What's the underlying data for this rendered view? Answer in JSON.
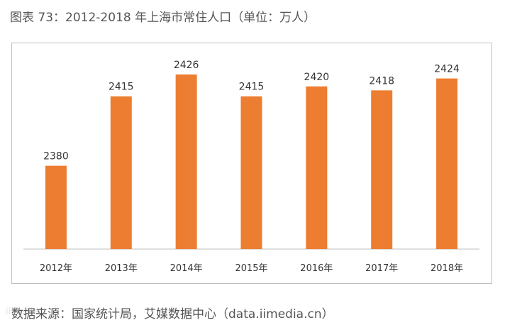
{
  "title": "图表 73：2012-2018 年上海市常住人口（单位：万人）",
  "source": "数据来源：国家统计局，艾媒数据中心（data.iimedia.cn）",
  "watermark": "iiMedia",
  "colors": {
    "bar": "#ED7D31",
    "axis": "#bfbfbf",
    "text": "#333333"
  },
  "chart_data": {
    "type": "bar",
    "title": "2012-2018 年上海市常住人口（单位：万人）",
    "categories": [
      "2012年",
      "2013年",
      "2014年",
      "2015年",
      "2016年",
      "2017年",
      "2018年"
    ],
    "values": [
      2380,
      2415,
      2426,
      2415,
      2420,
      2418,
      2424
    ],
    "xlabel": "",
    "ylabel": "",
    "ylim": [
      2338,
      2431
    ],
    "grid": false,
    "legend": "none"
  }
}
